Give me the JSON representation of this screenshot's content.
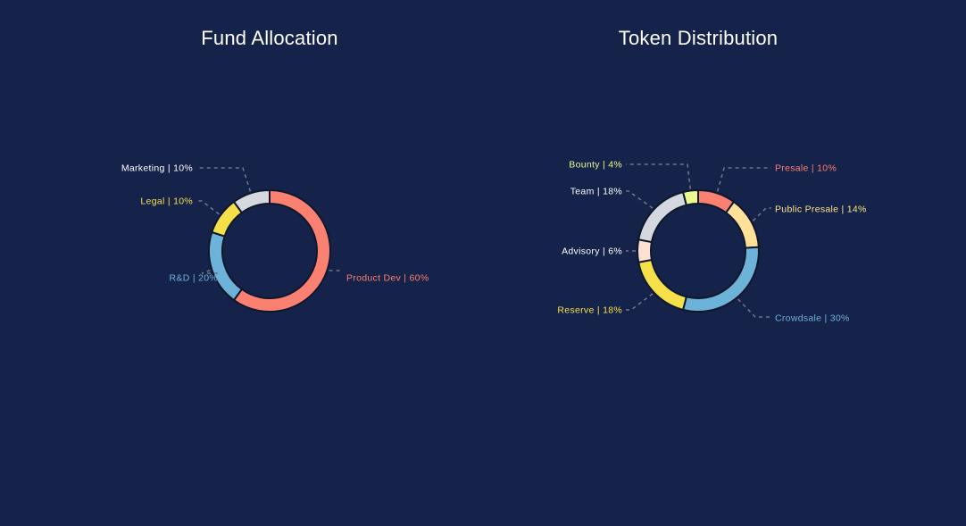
{
  "chart_data": [
    {
      "type": "donut",
      "title": "Fund Allocation",
      "segments": [
        {
          "label": "Product Dev | 60%",
          "value": 60,
          "color": "#fa8072"
        },
        {
          "label": "R&D  | 20%",
          "value": 20,
          "color": "#6db3d9"
        },
        {
          "label": "Legal | 10%",
          "value": 10,
          "color": "#f6e04a"
        },
        {
          "label": "Marketing | 10%",
          "value": 10,
          "color": "#d5d8de"
        }
      ]
    },
    {
      "type": "donut",
      "title": "Token Distribution",
      "segments": [
        {
          "label": "Presale | 10%",
          "value": 10,
          "color": "#fa8072"
        },
        {
          "label": "Public Presale | 14%",
          "value": 14,
          "color": "#ffe199"
        },
        {
          "label": "Crowdsale | 30%",
          "value": 30,
          "color": "#6db3d9"
        },
        {
          "label": "Reserve | 18%",
          "value": 18,
          "color": "#f6e04a"
        },
        {
          "label": "Advisory | 6%",
          "value": 6,
          "color": "#fde0d2"
        },
        {
          "label": "Team | 18%",
          "value": 18,
          "color": "#d5d8de"
        },
        {
          "label": "Bounty | 4%",
          "value": 4,
          "color": "#eafa90"
        }
      ]
    }
  ],
  "label_colors": {
    "fund": [
      "#fa8072",
      "#6db3d9",
      "#f6e04a",
      "#ffffff"
    ],
    "token": [
      "#fa8072",
      "#ffe48a",
      "#6db3d9",
      "#f6e04a",
      "#ffffff",
      "#ffffff",
      "#eafa90"
    ]
  },
  "background": "#15224a"
}
